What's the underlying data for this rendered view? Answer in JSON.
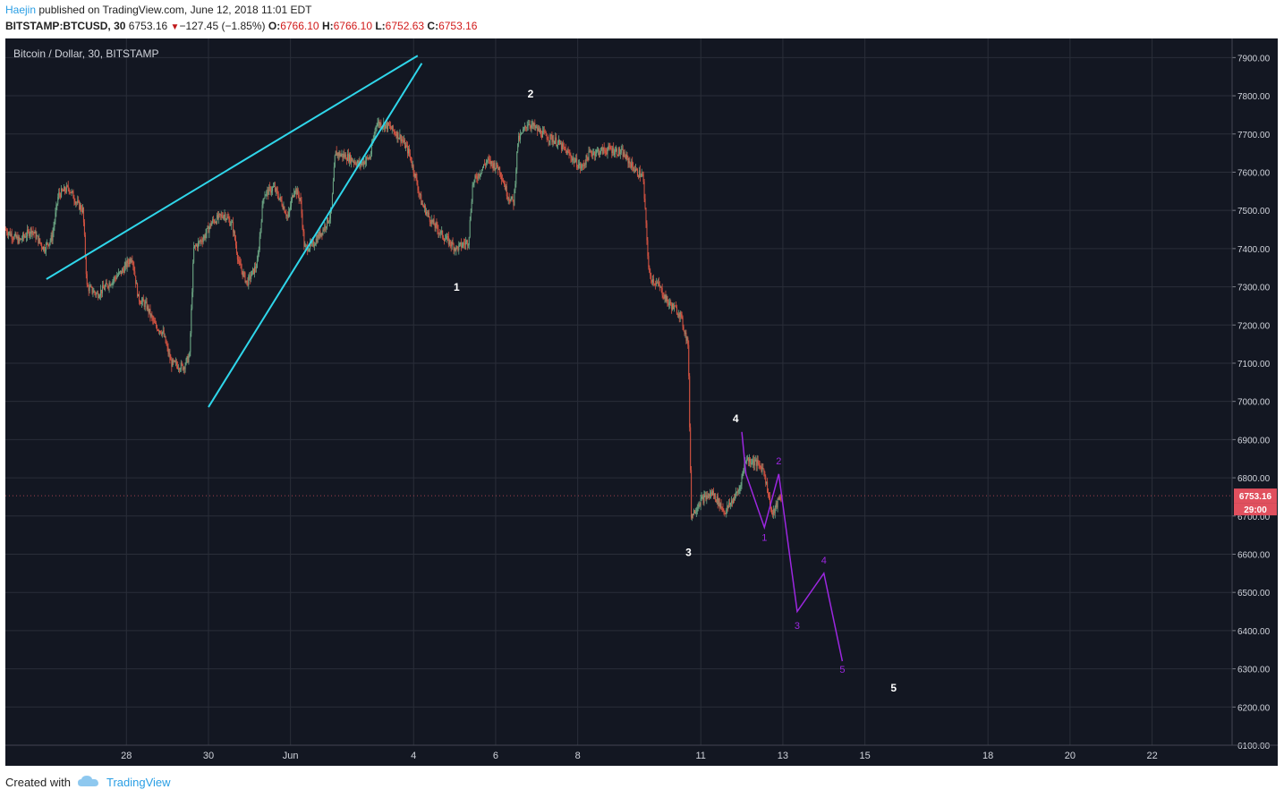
{
  "header": {
    "author": "Haejin",
    "published_text": "published on TradingView.com, June 12, 2018 11:01 EDT",
    "symbol": "BITSTAMP:BTCUSD, 30",
    "last": "6753.16",
    "change_arrow": "▼",
    "change": "−127.45 (−1.85%)",
    "o_label": "O:",
    "o_value": "6766.10",
    "h_label": "H:",
    "h_value": "6766.10",
    "l_label": "L:",
    "l_value": "6752.63",
    "c_label": "C:",
    "c_value": "6753.16"
  },
  "footer": {
    "created_with": "Created with",
    "brand": "TradingView"
  },
  "chart_data": {
    "type": "candlestick",
    "title": "Bitcoin / Dollar, 30, BITSTAMP",
    "background": "#131722",
    "colors": {
      "up": "#6ba583",
      "down": "#d75442",
      "trendline": "#2fd6ea",
      "projection": "#9c27e0",
      "wave_labels": "#ffffff",
      "price_tag": "#e0505e"
    },
    "ylim": [
      6100,
      7950
    ],
    "y_ticks": [
      "7900.00",
      "7800.00",
      "7700.00",
      "7600.00",
      "7500.00",
      "7400.00",
      "7300.00",
      "7200.00",
      "7100.00",
      "7000.00",
      "6900.00",
      "6800.00",
      "6700.00",
      "6600.00",
      "6500.00",
      "6400.00",
      "6300.00",
      "6200.00",
      "6100.00"
    ],
    "x_ticks": [
      "28",
      "30",
      "Jun",
      "4",
      "6",
      "8",
      "11",
      "13",
      "15",
      "18",
      "20",
      "22"
    ],
    "x_tick_dates": [
      -4,
      -2,
      0,
      3,
      5,
      7,
      10,
      12,
      14,
      17,
      19,
      21
    ],
    "x_range_days": [
      -6.95,
      22.95
    ],
    "last_price_label": "6753.16",
    "countdown_label": "29:00",
    "price_path": [
      [
        -6.95,
        7450
      ],
      [
        -6.6,
        7420
      ],
      [
        -6.3,
        7450
      ],
      [
        -6.0,
        7400
      ],
      [
        -5.8,
        7430
      ],
      [
        -5.65,
        7540
      ],
      [
        -5.4,
        7560
      ],
      [
        -5.2,
        7520
      ],
      [
        -5.05,
        7500
      ],
      [
        -4.95,
        7300
      ],
      [
        -4.7,
        7280
      ],
      [
        -4.4,
        7310
      ],
      [
        -4.1,
        7340
      ],
      [
        -3.85,
        7380
      ],
      [
        -3.7,
        7270
      ],
      [
        -3.5,
        7250
      ],
      [
        -3.3,
        7200
      ],
      [
        -3.1,
        7180
      ],
      [
        -2.9,
        7100
      ],
      [
        -2.6,
        7090
      ],
      [
        -2.45,
        7120
      ],
      [
        -2.35,
        7400
      ],
      [
        -2.1,
        7430
      ],
      [
        -1.9,
        7470
      ],
      [
        -1.6,
        7490
      ],
      [
        -1.4,
        7460
      ],
      [
        -1.25,
        7360
      ],
      [
        -1.05,
        7310
      ],
      [
        -0.8,
        7360
      ],
      [
        -0.65,
        7540
      ],
      [
        -0.4,
        7560
      ],
      [
        -0.2,
        7520
      ],
      [
        -0.05,
        7480
      ],
      [
        0.1,
        7560
      ],
      [
        0.25,
        7530
      ],
      [
        0.35,
        7400
      ],
      [
        0.55,
        7410
      ],
      [
        0.8,
        7450
      ],
      [
        1.0,
        7490
      ],
      [
        1.1,
        7650
      ],
      [
        1.4,
        7640
      ],
      [
        1.7,
        7620
      ],
      [
        1.95,
        7640
      ],
      [
        2.1,
        7730
      ],
      [
        2.4,
        7720
      ],
      [
        2.7,
        7690
      ],
      [
        2.9,
        7650
      ],
      [
        3.05,
        7590
      ],
      [
        3.2,
        7520
      ],
      [
        3.45,
        7470
      ],
      [
        3.75,
        7430
      ],
      [
        4.05,
        7400
      ],
      [
        4.35,
        7420
      ],
      [
        4.45,
        7570
      ],
      [
        4.8,
        7630
      ],
      [
        5.1,
        7610
      ],
      [
        5.3,
        7540
      ],
      [
        5.45,
        7520
      ],
      [
        5.55,
        7680
      ],
      [
        5.8,
        7730
      ],
      [
        6.15,
        7700
      ],
      [
        6.5,
        7680
      ],
      [
        6.85,
        7640
      ],
      [
        7.1,
        7610
      ],
      [
        7.3,
        7650
      ],
      [
        7.8,
        7660
      ],
      [
        8.1,
        7650
      ],
      [
        8.45,
        7600
      ],
      [
        8.6,
        7590
      ],
      [
        8.75,
        7330
      ],
      [
        9.0,
        7300
      ],
      [
        9.2,
        7260
      ],
      [
        9.5,
        7230
      ],
      [
        9.7,
        7150
      ],
      [
        9.78,
        6700
      ],
      [
        10.0,
        6740
      ],
      [
        10.3,
        6760
      ],
      [
        10.6,
        6710
      ],
      [
        10.95,
        6770
      ],
      [
        11.1,
        6850
      ],
      [
        11.35,
        6840
      ],
      [
        11.55,
        6820
      ],
      [
        11.75,
        6700
      ],
      [
        11.95,
        6753
      ]
    ],
    "annotations": {
      "trendlines": [
        {
          "from": [
            -5.95,
            7320
          ],
          "to": [
            3.1,
            7905
          ]
        },
        {
          "from": [
            -2.0,
            6985
          ],
          "to": [
            3.2,
            7885
          ]
        }
      ],
      "wave_labels": [
        {
          "text": "1",
          "date": 4.05,
          "price": 7290
        },
        {
          "text": "2",
          "date": 5.85,
          "price": 7795
        },
        {
          "text": "3",
          "date": 9.7,
          "price": 6595
        },
        {
          "text": "4",
          "date": 10.85,
          "price": 6945
        },
        {
          "text": "5",
          "date": 14.7,
          "price": 6240
        }
      ],
      "projection": {
        "points": [
          [
            11.0,
            6920
          ],
          [
            11.1,
            6810
          ],
          [
            11.55,
            6670
          ],
          [
            11.9,
            6810
          ],
          [
            12.35,
            6450
          ],
          [
            13.0,
            6550
          ],
          [
            13.45,
            6320
          ]
        ],
        "labels": [
          {
            "text": "1",
            "date": 11.55,
            "price": 6635
          },
          {
            "text": "2",
            "date": 11.9,
            "price": 6835
          },
          {
            "text": "3",
            "date": 12.35,
            "price": 6405
          },
          {
            "text": "4",
            "date": 13.0,
            "price": 6575
          },
          {
            "text": "5",
            "date": 13.45,
            "price": 6290
          }
        ]
      }
    }
  }
}
